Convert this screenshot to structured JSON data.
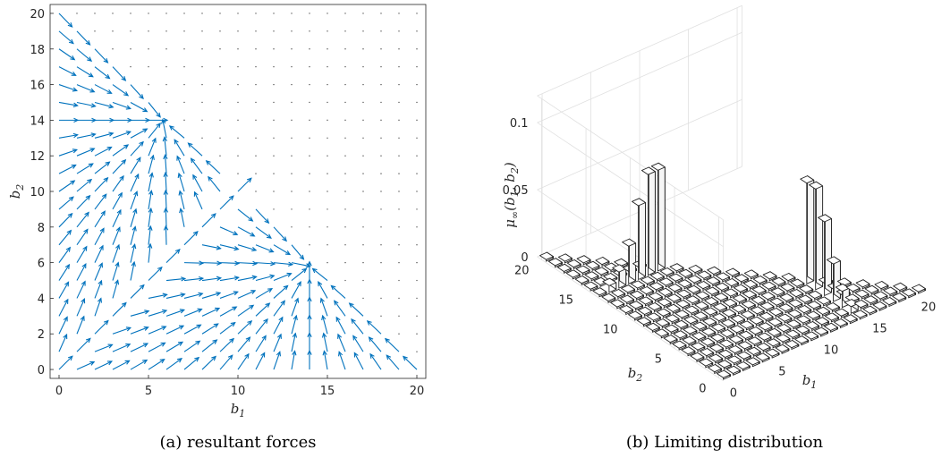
{
  "chart_data": [
    {
      "type": "quiver",
      "caption": "(a) resultant forces",
      "xlabel": "b",
      "xlabel_sub": "1",
      "ylabel": "b",
      "ylabel_sub": "2",
      "xlim": [
        -0.5,
        20.5
      ],
      "ylim": [
        -0.5,
        20.5
      ],
      "xticks": [
        0,
        5,
        10,
        15,
        20
      ],
      "yticks": [
        0,
        2,
        4,
        6,
        8,
        10,
        12,
        14,
        16,
        18,
        20
      ],
      "grid": false,
      "grid_dots": true,
      "arrow_color": "#0072BD",
      "attractors": [
        [
          5.8,
          14
        ],
        [
          14,
          5.8
        ]
      ],
      "separatrix": [
        [
          0,
          0
        ],
        [
          10,
          10
        ]
      ],
      "domain": "b1 + b2 <= 20, integer lattice"
    },
    {
      "type": "bar3d",
      "caption": "(b) Limiting distribution",
      "xlabel": "b",
      "xlabel_sub": "1",
      "ylabel": "b",
      "ylabel_sub": "2",
      "zlabel": "μ",
      "zlabel_sub": "∞",
      "zlabel_args": "(b1, b2)",
      "xticks": [
        0,
        5,
        10,
        15,
        20
      ],
      "yticks": [
        0,
        5,
        10,
        15,
        20
      ],
      "zticks": [
        "0",
        "0.05",
        "0.1"
      ],
      "zlim": [
        0,
        0.12
      ],
      "grid": true,
      "peaks": [
        {
          "b1": 5,
          "b2": 14,
          "row_values": [
            {
              "b1": 1,
              "b2": 14,
              "z": 0.005
            },
            {
              "b1": 2,
              "b2": 14,
              "z": 0.012
            },
            {
              "b1": 3,
              "b2": 14,
              "z": 0.028
            },
            {
              "b1": 4,
              "b2": 14,
              "z": 0.055
            },
            {
              "b1": 5,
              "b2": 14,
              "z": 0.075
            },
            {
              "b1": 6,
              "b2": 14,
              "z": 0.075
            },
            {
              "b1": 7,
              "b2": 14,
              "z": 0.058
            },
            {
              "b1": 8,
              "b2": 14,
              "z": 0.028
            },
            {
              "b1": 9,
              "b2": 14,
              "z": 0.012
            }
          ]
        },
        {
          "b1": 14,
          "b2": 5,
          "row_values": [
            {
              "b1": 14,
              "b2": 1,
              "z": 0.005
            },
            {
              "b1": 14,
              "b2": 2,
              "z": 0.012
            },
            {
              "b1": 14,
              "b2": 3,
              "z": 0.028
            },
            {
              "b1": 14,
              "b2": 4,
              "z": 0.055
            },
            {
              "b1": 14,
              "b2": 5,
              "z": 0.075
            },
            {
              "b1": 14,
              "b2": 6,
              "z": 0.075
            },
            {
              "b1": 14,
              "b2": 7,
              "z": 0.058
            },
            {
              "b1": 14,
              "b2": 8,
              "z": 0.028
            },
            {
              "b1": 14,
              "b2": 9,
              "z": 0.012
            }
          ]
        }
      ]
    }
  ]
}
